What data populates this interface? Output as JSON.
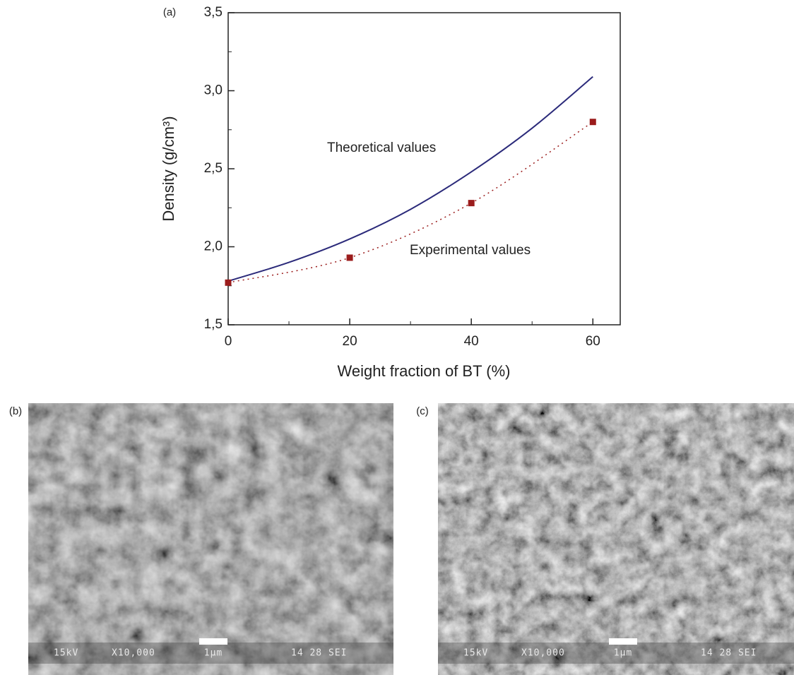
{
  "chart_data": {
    "type": "line",
    "panel_label": "(a)",
    "x_label": "Weight fraction of BT (%)",
    "y_label": "Density (g/cm³)",
    "xlim": [
      0,
      64.5
    ],
    "xticks": [
      0,
      20,
      40,
      60
    ],
    "ylim": [
      1.5,
      3.5
    ],
    "yticks": [
      {
        "value": 1.5,
        "label": "1,5"
      },
      {
        "value": 2.0,
        "label": "2,0"
      },
      {
        "value": 2.5,
        "label": "2,5"
      },
      {
        "value": 3.0,
        "label": "3,0"
      },
      {
        "value": 3.5,
        "label": "3,5"
      }
    ],
    "series": [
      {
        "name": "Theoretical values",
        "color": "#2b2a7a",
        "style": "solid",
        "x": [
          0,
          10,
          20,
          30,
          40,
          50,
          60
        ],
        "values": [
          1.78,
          1.9,
          2.05,
          2.24,
          2.48,
          2.76,
          3.09
        ]
      },
      {
        "name": "Experimental values",
        "color": "#9b1c1c",
        "style": "markers-dotted",
        "x": [
          0,
          20,
          40,
          60
        ],
        "values": [
          1.77,
          1.93,
          2.28,
          2.8
        ]
      }
    ]
  },
  "micrographs": [
    {
      "label": "(b)",
      "info": [
        "15kV",
        "X10,000",
        "1μm",
        "14 28 SEI"
      ]
    },
    {
      "label": "(c)",
      "info": [
        "15kV",
        "X10,000",
        "1μm",
        "14 28 SEI"
      ]
    }
  ]
}
